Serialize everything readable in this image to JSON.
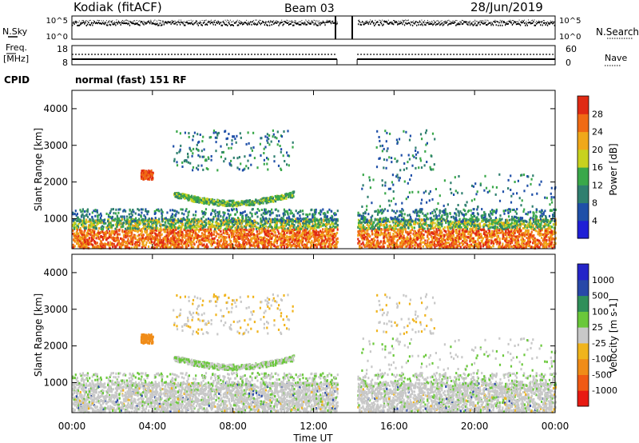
{
  "header": {
    "station": "Kodiak (fitACF)",
    "beam": "Beam 03",
    "date": "28/Jun/2019"
  },
  "left_labels": {
    "nsky": "N.Sky",
    "freq": "Freq.",
    "freq_unit": "[MHz]",
    "cpid": "CPID"
  },
  "right_labels": {
    "nsearch": "N.Search",
    "nave": "Nave"
  },
  "mode_label": "normal (fast) 151 RF",
  "noise_panel": {
    "left_ticks": [
      "10^5",
      "10^0"
    ],
    "right_ticks": [
      "10^5",
      "10^0"
    ]
  },
  "freq_panel": {
    "left_ticks": [
      "18",
      "8"
    ],
    "right_ticks": [
      "60",
      "0"
    ]
  },
  "colors": {
    "power": [
      "#1f1fd6",
      "#1f4fa8",
      "#2f7f6f",
      "#3aa84a",
      "#c8d21e",
      "#f0a81a",
      "#f06a14",
      "#e02a14"
    ],
    "velocity": [
      "#e81a12",
      "#f05a14",
      "#f08c18",
      "#f0b41c",
      "#c8c8c8",
      "#6ac83a",
      "#2f8f5a",
      "#2848a8",
      "#2424c8"
    ]
  },
  "chart_data": [
    {
      "type": "heatmap",
      "ylabel": "Slant Range [km]",
      "y_ticks": [
        "1000",
        "2000",
        "3000",
        "4000"
      ],
      "ylim": [
        180,
        4500
      ],
      "colorbar_label": "Power [dB]",
      "colorbar_ticks": [
        "4",
        "8",
        "12",
        "16",
        "20",
        "24",
        "28"
      ],
      "colorbar_range": [
        0,
        30
      ],
      "data_gap_ut": [
        "13:10",
        "14:10"
      ]
    },
    {
      "type": "heatmap",
      "ylabel": "Slant Range [km]",
      "y_ticks": [
        "1000",
        "2000",
        "3000",
        "4000"
      ],
      "ylim": [
        180,
        4500
      ],
      "xlabel": "Time UT",
      "x_ticks": [
        "00:00",
        "04:00",
        "08:00",
        "12:00",
        "16:00",
        "20:00",
        "00:00"
      ],
      "colorbar_label": "Velocity [m s-1]",
      "colorbar_ticks": [
        "1000",
        "500",
        "100",
        "25",
        "-25",
        "-100",
        "-500",
        "-1000"
      ],
      "data_gap_ut": [
        "13:10",
        "14:10"
      ]
    }
  ]
}
